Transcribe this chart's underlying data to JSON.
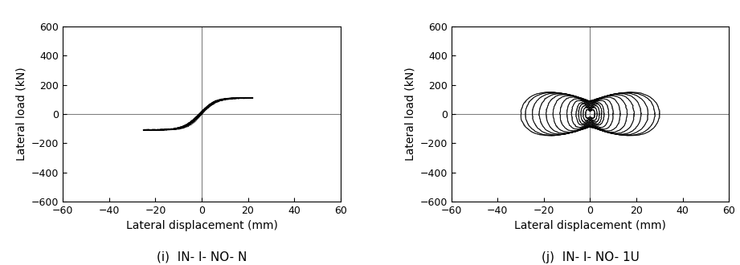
{
  "xlim": [
    -60,
    60
  ],
  "ylim": [
    -600,
    600
  ],
  "xticks": [
    -60,
    -40,
    -20,
    0,
    20,
    40,
    60
  ],
  "yticks": [
    -600,
    -400,
    -200,
    0,
    200,
    400,
    600
  ],
  "xlabel": "Lateral displacement (mm)",
  "ylabel": "Lateral load (kN)",
  "label_i": "(i)  IN- I- NO- N",
  "label_j": "(j)  IN- I- NO- 1U",
  "axis_color": "black",
  "zero_line_color": "gray",
  "vline_color": "black",
  "line_color": "black",
  "line_width": 0.6,
  "bg_color": "white",
  "tick_fontsize": 9,
  "axis_label_fontsize": 10,
  "caption_fontsize": 11
}
